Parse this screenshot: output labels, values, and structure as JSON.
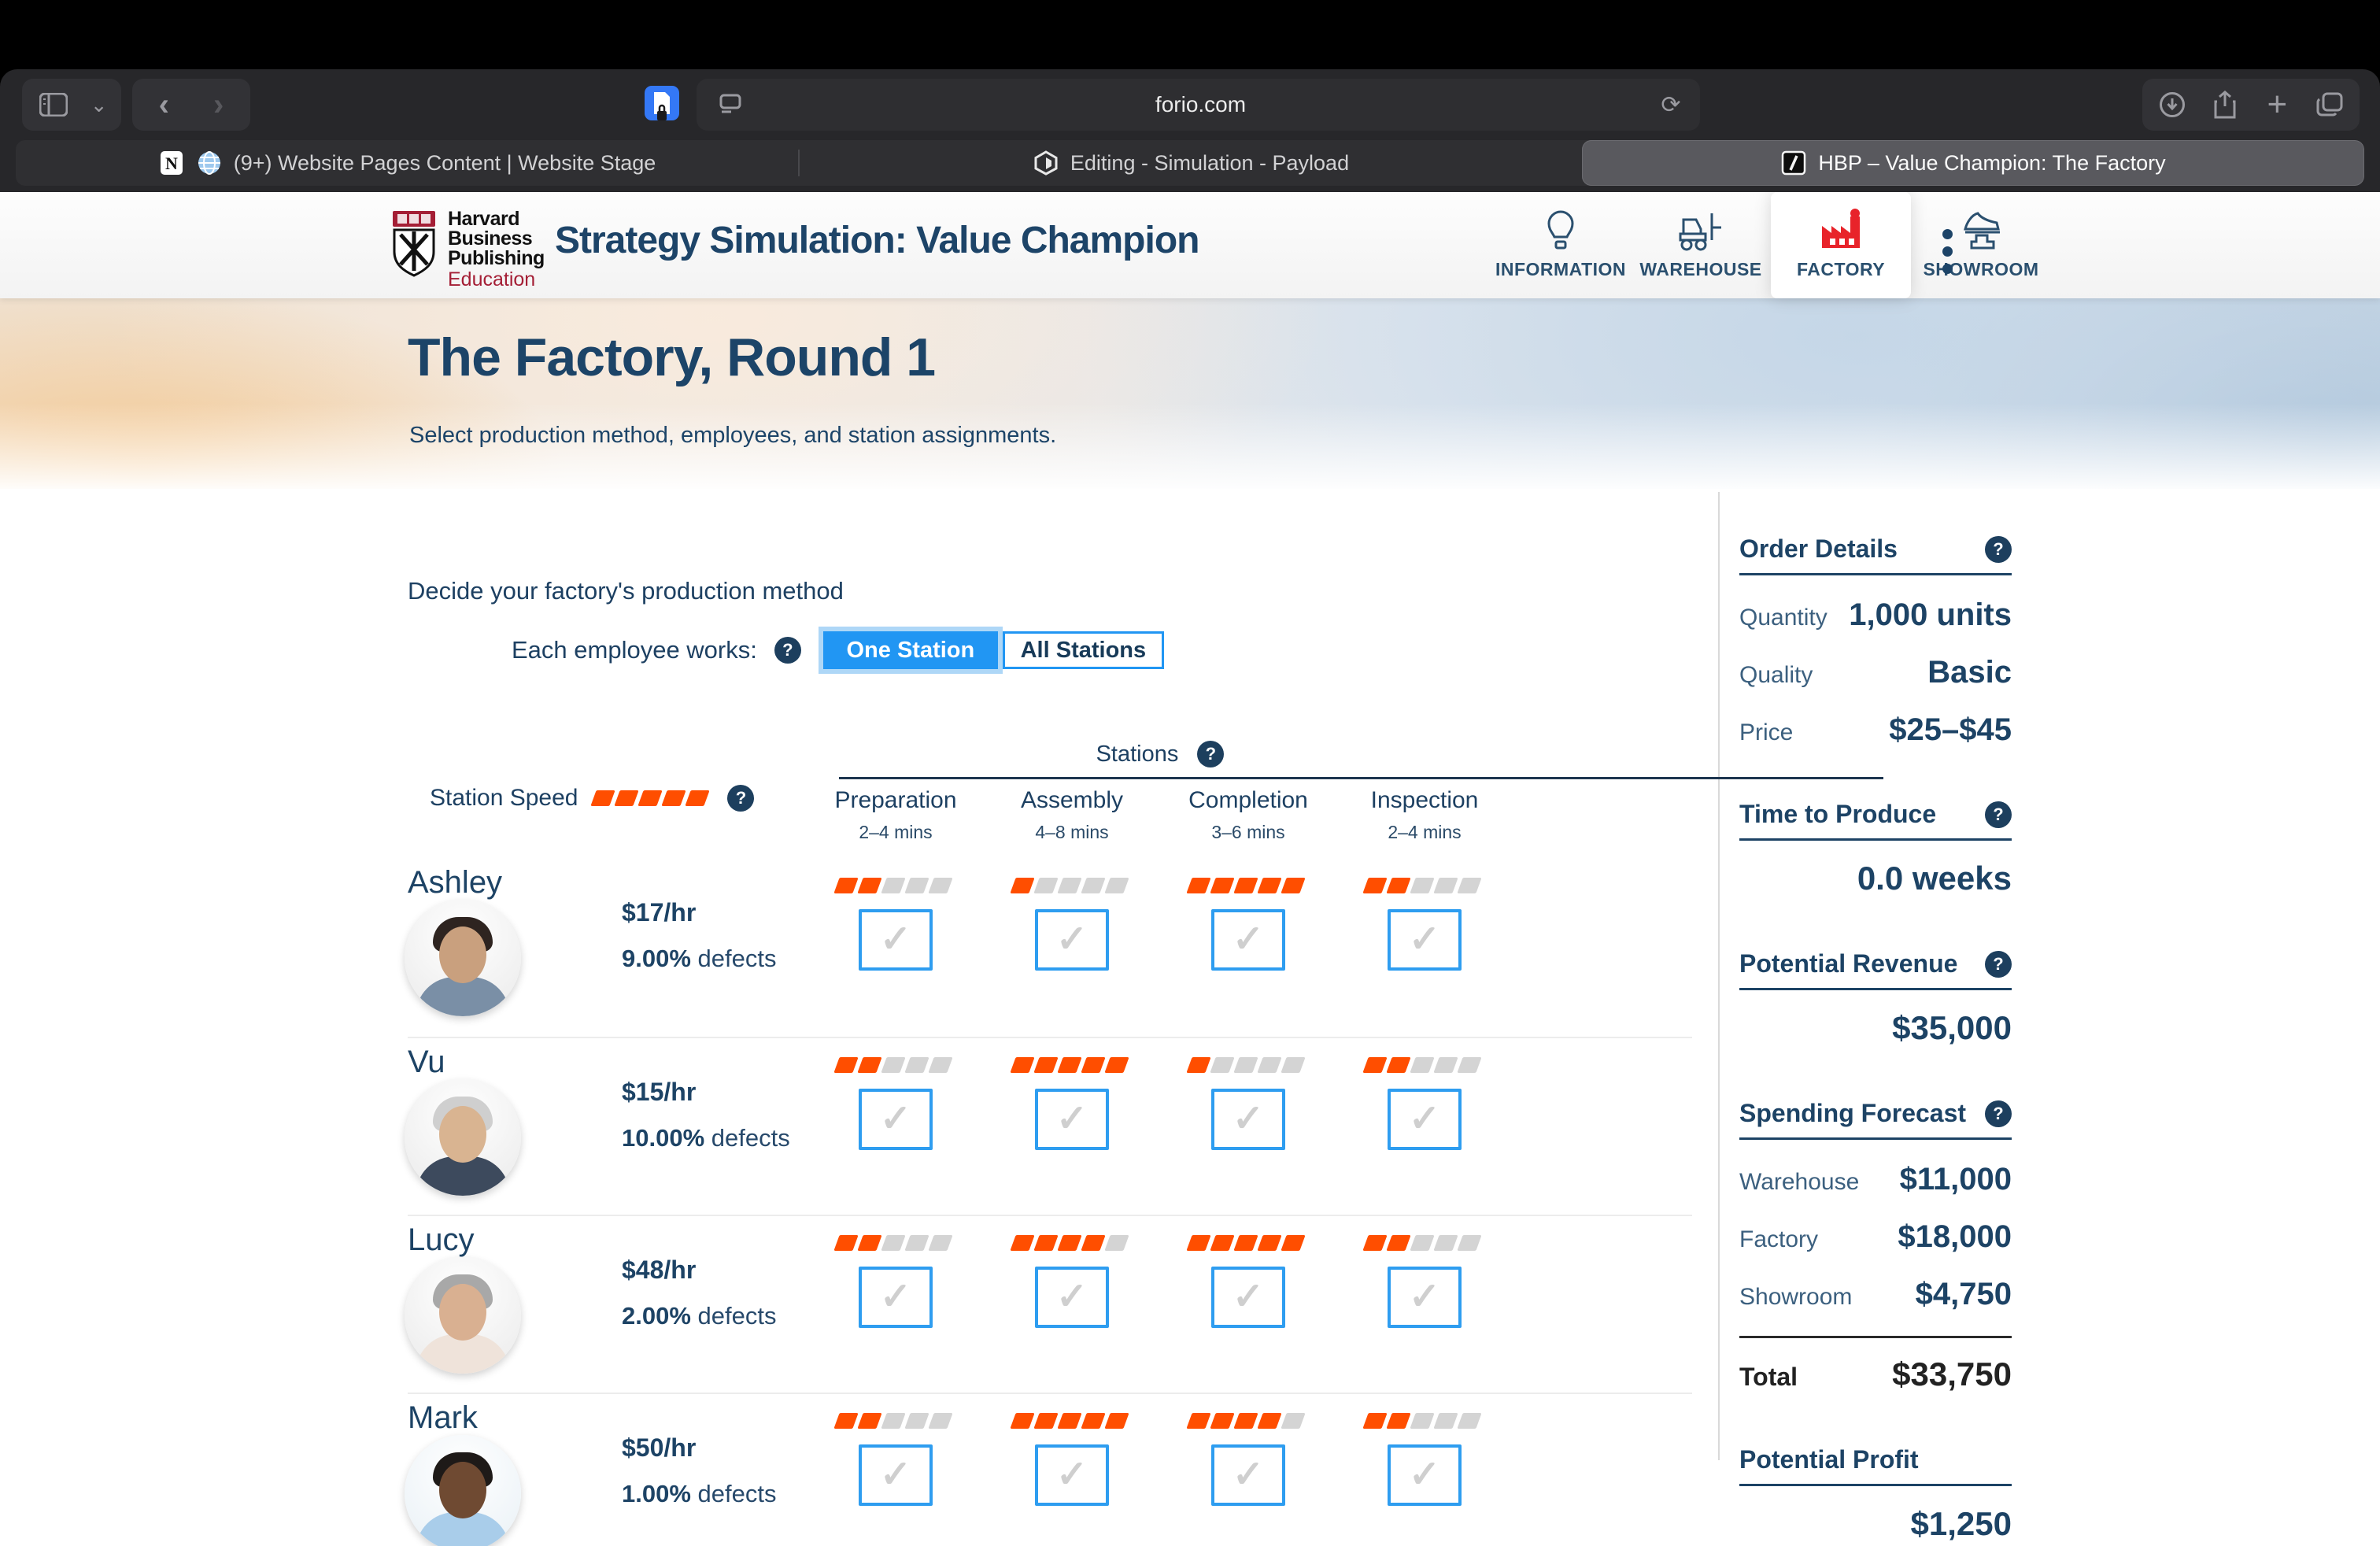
{
  "help_glyph": "?",
  "check_glyph": "✓",
  "browser": {
    "url": "forio.com",
    "tabs": [
      {
        "title": "(9+) Website Pages Content | Website Stage",
        "icons": [
          "notion-icon",
          "globe-icon"
        ],
        "active": false
      },
      {
        "title": "Editing - Simulation - Payload",
        "icons": [
          "payload-icon"
        ],
        "active": false
      },
      {
        "title": "HBP – Value Champion: The Factory",
        "icons": [
          "forio-icon"
        ],
        "active": true
      }
    ]
  },
  "header": {
    "logo": {
      "line1": "Harvard",
      "line2": "Business",
      "line3": "Publishing",
      "line4": "Education"
    },
    "title": "Strategy Simulation: Value Champion",
    "nav": [
      {
        "label": "INFORMATION",
        "icon": "lightbulb-icon",
        "active": false
      },
      {
        "label": "WAREHOUSE",
        "icon": "forklift-icon",
        "active": false
      },
      {
        "label": "FACTORY",
        "icon": "factory-icon",
        "active": true
      },
      {
        "label": "SHOWROOM",
        "icon": "shoe-icon",
        "active": false
      }
    ]
  },
  "hero": {
    "title": "The Factory, Round 1",
    "subtitle": "Select production method, employees, and station assignments."
  },
  "production": {
    "prompt": "Decide your factory's production method",
    "toggle_label": "Each employee works:",
    "options": [
      {
        "label": "One Station",
        "selected": true
      },
      {
        "label": "All Stations",
        "selected": false
      }
    ],
    "station_speed_label": "Station Speed",
    "stations_label": "Stations",
    "columns": [
      {
        "name": "Preparation",
        "time": "2–4 mins"
      },
      {
        "name": "Assembly",
        "time": "4–8 mins"
      },
      {
        "name": "Completion",
        "time": "3–6 mins"
      },
      {
        "name": "Inspection",
        "time": "2–4 mins"
      }
    ],
    "speed_scale_max": 5
  },
  "employees": [
    {
      "name": "Ashley",
      "rate": "$17/hr",
      "defect_rate": "9.00%",
      "defect_label": "defects",
      "speeds": [
        2,
        1,
        5,
        2
      ],
      "checkboxes": [
        false,
        false,
        false,
        false
      ],
      "avatar": {
        "skin": "#c9a07e",
        "hair": "#2e2420",
        "shirt": "#7a8fa6",
        "bg": "#efefef"
      }
    },
    {
      "name": "Vu",
      "rate": "$15/hr",
      "defect_rate": "10.00%",
      "defect_label": "defects",
      "speeds": [
        2,
        5,
        1,
        2
      ],
      "checkboxes": [
        false,
        false,
        false,
        false
      ],
      "avatar": {
        "skin": "#d9b491",
        "hair": "#cfcfcf",
        "shirt": "#3d4a5d",
        "bg": "#efefef"
      }
    },
    {
      "name": "Lucy",
      "rate": "$48/hr",
      "defect_rate": "2.00%",
      "defect_label": "defects",
      "speeds": [
        2,
        4,
        5,
        2
      ],
      "checkboxes": [
        false,
        false,
        false,
        false
      ],
      "avatar": {
        "skin": "#d9b091",
        "hair": "#a8a8a8",
        "shirt": "#efe3da",
        "bg": "#efefef"
      }
    },
    {
      "name": "Mark",
      "rate": "$50/hr",
      "defect_rate": "1.00%",
      "defect_label": "defects",
      "speeds": [
        2,
        5,
        4,
        2
      ],
      "checkboxes": [
        false,
        false,
        false,
        false
      ],
      "avatar": {
        "skin": "#6f4a32",
        "hair": "#1e1a18",
        "shirt": "#a9cdea",
        "bg": "#eef4f8"
      }
    }
  ],
  "sidebar": {
    "order_details": {
      "title": "Order Details",
      "has_help": true,
      "rows": [
        {
          "label": "Quantity",
          "value": "1,000 units"
        },
        {
          "label": "Quality",
          "value": "Basic"
        },
        {
          "label": "Price",
          "value": "$25–$45"
        }
      ]
    },
    "time_to_produce": {
      "title": "Time to Produce",
      "has_help": true,
      "value": "0.0 weeks"
    },
    "potential_revenue": {
      "title": "Potential Revenue",
      "has_help": true,
      "value": "$35,000"
    },
    "spending_forecast": {
      "title": "Spending Forecast",
      "has_help": true,
      "rows": [
        {
          "label": "Warehouse",
          "value": "$11,000"
        },
        {
          "label": "Factory",
          "value": "$18,000"
        },
        {
          "label": "Showroom",
          "value": "$4,750"
        }
      ],
      "total_label": "Total",
      "total_value": "$33,750"
    },
    "potential_profit": {
      "title": "Potential Profit",
      "has_help": false,
      "value": "$1,250"
    }
  },
  "colors": {
    "accent_orange": "#ff4e00",
    "accent_blue": "#2196f3",
    "navy": "#1d4365",
    "factory_red": "#e8232a",
    "hbp_crimson": "#a41e35"
  }
}
